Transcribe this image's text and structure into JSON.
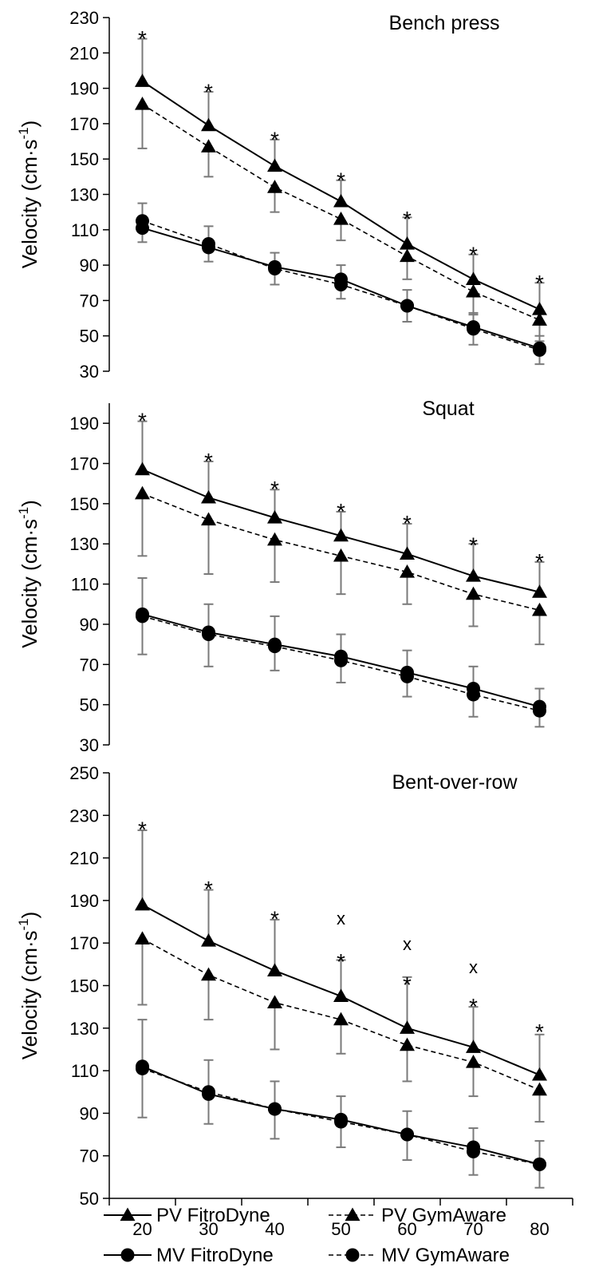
{
  "legend": {
    "entries": [
      {
        "label": "PV FitroDyne",
        "series": "pv_fitro",
        "dashed": false,
        "marker": "triangle"
      },
      {
        "label": "PV GymAware",
        "series": "pv_gym",
        "dashed": true,
        "marker": "triangle"
      },
      {
        "label": "MV FitroDyne",
        "series": "mv_fitro",
        "dashed": false,
        "marker": "circle"
      },
      {
        "label": "MV GymAware",
        "series": "mv_gym",
        "dashed": true,
        "marker": "circle"
      }
    ]
  },
  "chart_data": [
    {
      "type": "line",
      "title": "Bench press",
      "ylabel": "Velocity (cm·s",
      "ylabel_sup": "-1",
      "ylabel_close": ")",
      "ylim": [
        30,
        230
      ],
      "yticks": [
        30,
        50,
        70,
        90,
        110,
        130,
        150,
        170,
        190,
        210,
        230
      ],
      "x": [
        20,
        30,
        40,
        50,
        60,
        70,
        80
      ],
      "series": [
        {
          "key": "pv_fitro",
          "name": "PV FitroDyne",
          "values": [
            194,
            169,
            146,
            126,
            102,
            82,
            65
          ],
          "err": [
            24,
            19,
            15,
            12,
            15,
            14,
            15
          ]
        },
        {
          "key": "pv_gym",
          "name": "PV GymAware",
          "values": [
            181,
            157,
            134,
            116,
            95,
            75,
            59
          ],
          "err": [
            25,
            17,
            14,
            12,
            13,
            13,
            12
          ]
        },
        {
          "key": "mv_fitro",
          "name": "MV FitroDyne",
          "values": [
            111,
            100,
            89,
            82,
            67,
            55,
            43
          ],
          "err": [
            14,
            12,
            8,
            8,
            9,
            8,
            7
          ]
        },
        {
          "key": "mv_gym",
          "name": "MV GymAware",
          "values": [
            115,
            102,
            88,
            79,
            67,
            54,
            42
          ],
          "err": [
            12,
            10,
            9,
            8,
            9,
            9,
            8
          ]
        }
      ],
      "annotations": [
        {
          "x": 20,
          "y": 220,
          "text": "*"
        },
        {
          "x": 30,
          "y": 190,
          "text": "*"
        },
        {
          "x": 40,
          "y": 163,
          "text": "*"
        },
        {
          "x": 50,
          "y": 140,
          "text": "*"
        },
        {
          "x": 60,
          "y": 118,
          "text": "*"
        },
        {
          "x": 70,
          "y": 98,
          "text": "*"
        },
        {
          "x": 80,
          "y": 82,
          "text": "*"
        }
      ]
    },
    {
      "type": "line",
      "title": "Squat",
      "ylabel": "Velocity (cm·s",
      "ylabel_sup": "-1",
      "ylabel_close": ")",
      "ylim": [
        30,
        200
      ],
      "yticks": [
        30,
        50,
        70,
        90,
        110,
        130,
        150,
        170,
        190
      ],
      "x": [
        20,
        30,
        40,
        50,
        60,
        70,
        80
      ],
      "series": [
        {
          "key": "pv_fitro",
          "name": "PV FitroDyne",
          "values": [
            167,
            153,
            143,
            134,
            125,
            114,
            106
          ],
          "err": [
            24,
            18,
            14,
            12,
            15,
            16,
            15
          ]
        },
        {
          "key": "pv_gym",
          "name": "PV GymAware",
          "values": [
            155,
            142,
            132,
            124,
            116,
            105,
            97
          ],
          "err": [
            31,
            27,
            21,
            19,
            16,
            16,
            17
          ]
        },
        {
          "key": "mv_fitro",
          "name": "MV FitroDyne",
          "values": [
            95,
            86,
            80,
            74,
            66,
            58,
            49
          ],
          "err": [
            18,
            14,
            14,
            11,
            11,
            11,
            9
          ]
        },
        {
          "key": "mv_gym",
          "name": "MV GymAware",
          "values": [
            94,
            85,
            79,
            72,
            64,
            55,
            47
          ],
          "err": [
            19,
            16,
            12,
            11,
            10,
            11,
            8
          ]
        }
      ],
      "annotations": [
        {
          "x": 20,
          "y": 193,
          "text": "*"
        },
        {
          "x": 30,
          "y": 173,
          "text": "*"
        },
        {
          "x": 40,
          "y": 159,
          "text": "*"
        },
        {
          "x": 50,
          "y": 148,
          "text": "*"
        },
        {
          "x": 60,
          "y": 142,
          "text": "*"
        },
        {
          "x": 70,
          "y": 131,
          "text": "*"
        },
        {
          "x": 80,
          "y": 123,
          "text": "*"
        }
      ]
    },
    {
      "type": "line",
      "title": "Bent-over-row",
      "ylabel": "Velocity (cm·s",
      "ylabel_sup": "-1",
      "ylabel_close": ")",
      "ylim": [
        50,
        250
      ],
      "yticks": [
        50,
        70,
        90,
        110,
        130,
        150,
        170,
        190,
        210,
        230,
        250
      ],
      "x": [
        20,
        30,
        40,
        50,
        60,
        70,
        80
      ],
      "series": [
        {
          "key": "pv_fitro",
          "name": "PV FitroDyne",
          "values": [
            188,
            171,
            157,
            145,
            130,
            121,
            108
          ],
          "err": [
            35,
            24,
            24,
            17,
            24,
            19,
            19
          ]
        },
        {
          "key": "pv_gym",
          "name": "PV GymAware",
          "values": [
            172,
            155,
            142,
            134,
            122,
            114,
            101
          ],
          "err": [
            31,
            21,
            22,
            16,
            17,
            16,
            15
          ]
        },
        {
          "key": "mv_fitro",
          "name": "MV FitroDyne",
          "values": [
            112,
            99,
            92,
            87,
            80,
            74,
            66
          ],
          "err": [
            22,
            16,
            13,
            11,
            11,
            9,
            11
          ]
        },
        {
          "key": "mv_gym",
          "name": "MV GymAware",
          "values": [
            111,
            100,
            92,
            86,
            80,
            72,
            66
          ],
          "err": [
            23,
            15,
            14,
            12,
            12,
            11,
            11
          ]
        }
      ],
      "annotations": [
        {
          "x": 20,
          "y": 225,
          "text": "*"
        },
        {
          "x": 30,
          "y": 197,
          "text": "*"
        },
        {
          "x": 40,
          "y": 183,
          "text": "*"
        },
        {
          "x": 50,
          "y": 163,
          "text": "*"
        },
        {
          "x": 50,
          "y": 181,
          "text": "x"
        },
        {
          "x": 60,
          "y": 152,
          "text": "*"
        },
        {
          "x": 60,
          "y": 169,
          "text": "x"
        },
        {
          "x": 70,
          "y": 142,
          "text": "*"
        },
        {
          "x": 70,
          "y": 158,
          "text": "x"
        },
        {
          "x": 80,
          "y": 130,
          "text": "*"
        }
      ]
    }
  ],
  "x_axis": {
    "ticks": [
      20,
      30,
      40,
      50,
      60,
      70,
      80
    ],
    "xlim": [
      15,
      85
    ]
  }
}
